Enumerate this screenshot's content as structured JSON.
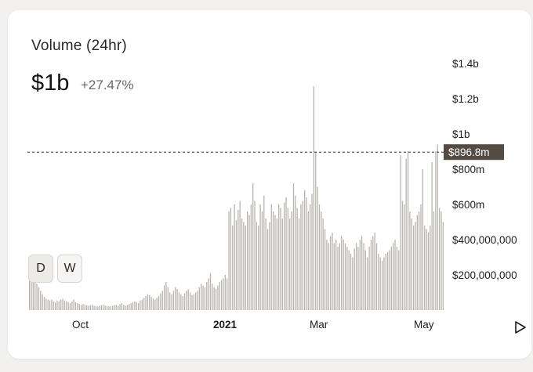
{
  "header": {
    "title": "Volume (24hr)",
    "value": "$1b",
    "change": "+27.47%"
  },
  "timeframe_buttons": [
    {
      "label": "D",
      "active": true
    },
    {
      "label": "W",
      "active": false
    }
  ],
  "icons": {
    "play": "play-icon"
  },
  "colors": {
    "bar": "#b9b3ad",
    "highlight_bg": "#544c42",
    "highlight_text": "#ffffff",
    "text": "#1f1d1a"
  },
  "chart_data": {
    "type": "bar",
    "x_ticks": [
      "Oct",
      "2021",
      "Mar",
      "May"
    ],
    "y_ticks": [
      "$1.4b",
      "$1.2b",
      "$1b",
      "$800m",
      "$600m",
      "$400,000,000",
      "$200,000,000"
    ],
    "y_tick_values": [
      1400000000,
      1200000000,
      1000000000,
      800000000,
      600000000,
      400000000,
      200000000
    ],
    "ylim": [
      0,
      1400000000
    ],
    "reference_line": {
      "value": 896800000,
      "label": "$896.8m"
    },
    "grid": false,
    "values_millions": [
      250,
      240,
      180,
      160,
      150,
      130,
      110,
      90,
      75,
      65,
      60,
      55,
      60,
      50,
      45,
      55,
      50,
      60,
      65,
      55,
      50,
      45,
      40,
      50,
      60,
      45,
      40,
      35,
      30,
      35,
      30,
      28,
      25,
      28,
      30,
      25,
      22,
      20,
      25,
      28,
      30,
      25,
      22,
      20,
      22,
      25,
      28,
      30,
      25,
      35,
      40,
      30,
      25,
      30,
      35,
      40,
      45,
      50,
      45,
      40,
      55,
      60,
      70,
      80,
      90,
      85,
      75,
      65,
      60,
      70,
      80,
      95,
      110,
      140,
      160,
      130,
      100,
      90,
      110,
      130,
      120,
      100,
      90,
      80,
      95,
      110,
      120,
      100,
      85,
      90,
      100,
      110,
      130,
      150,
      140,
      130,
      160,
      180,
      210,
      150,
      130,
      120,
      140,
      160,
      170,
      180,
      200,
      180,
      560,
      580,
      480,
      600,
      510,
      570,
      620,
      520,
      500,
      480,
      560,
      540,
      600,
      720,
      620,
      500,
      480,
      600,
      560,
      650,
      520,
      460,
      500,
      600,
      560,
      540,
      520,
      600,
      580,
      520,
      610,
      640,
      580,
      520,
      560,
      720,
      650,
      580,
      520,
      600,
      620,
      680,
      640,
      560,
      600,
      660,
      1270,
      900,
      700,
      600,
      560,
      520,
      460,
      400,
      380,
      420,
      440,
      380,
      400,
      360,
      380,
      420,
      400,
      380,
      360,
      340,
      320,
      300,
      350,
      380,
      360,
      400,
      420,
      380,
      340,
      300,
      360,
      400,
      420,
      440,
      380,
      320,
      300,
      280,
      300,
      320,
      330,
      340,
      360,
      380,
      400,
      360,
      340,
      880,
      620,
      600,
      860,
      900,
      560,
      520,
      480,
      500,
      540,
      560,
      600,
      800,
      480,
      460,
      440,
      480,
      840,
      560,
      900,
      940,
      580,
      560,
      500
    ]
  }
}
